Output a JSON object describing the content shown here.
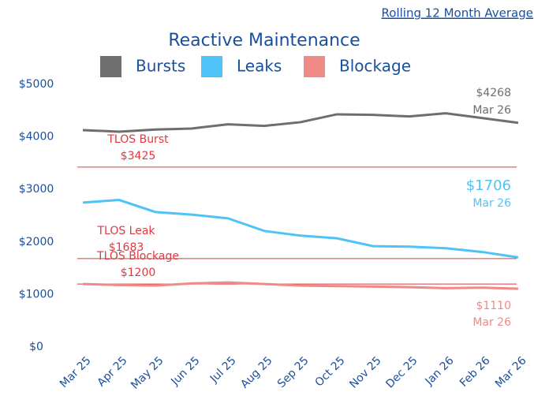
{
  "link": "Rolling 12 Month Average",
  "chart_data": {
    "type": "line",
    "title": "Reactive Maintenance",
    "categories": [
      "Mar 25",
      "Apr 25",
      "May 25",
      "Jun 25",
      "Jul 25",
      "Aug 25",
      "Sep 25",
      "Oct 25",
      "Nov 25",
      "Dec 25",
      "Jan 26",
      "Feb 26",
      "Mar 26"
    ],
    "series": [
      {
        "name": "Bursts",
        "color": "#6e6e6e",
        "values": [
          4130,
          4100,
          4140,
          4160,
          4240,
          4210,
          4280,
          4430,
          4420,
          4390,
          4450,
          4360,
          4268
        ],
        "value_labels": [
          null,
          null,
          null,
          null,
          null,
          null,
          null,
          null,
          null,
          null,
          null,
          null,
          "$4268"
        ]
      },
      {
        "name": "Leaks",
        "color": "#4fc3f7",
        "values": [
          2750,
          2800,
          2570,
          2520,
          2450,
          2210,
          2120,
          2070,
          1920,
          1910,
          1880,
          1810,
          1706
        ],
        "value_labels": [
          null,
          null,
          null,
          null,
          null,
          null,
          null,
          null,
          null,
          null,
          null,
          null,
          "$1706"
        ]
      },
      {
        "name": "Blockage",
        "color": "#f08a86",
        "values": [
          1200,
          1180,
          1170,
          1210,
          1230,
          1200,
          1170,
          1160,
          1150,
          1140,
          1120,
          1130,
          1110
        ],
        "value_labels": [
          null,
          null,
          null,
          null,
          null,
          null,
          null,
          null,
          null,
          null,
          null,
          null,
          "$1110"
        ]
      }
    ],
    "thresholds": [
      {
        "name": "TLOS Burst",
        "value": 3425,
        "value_label": "$3425"
      },
      {
        "name": "TLOS Leak",
        "value": 1683,
        "value_label": "$1683"
      },
      {
        "name": "TLOS Blockage",
        "value": 1200,
        "value_label": "$1200"
      }
    ],
    "threshold_color": "#e0393e",
    "ylim": [
      0,
      5000
    ],
    "yticks": [
      {
        "value": 0,
        "label": "$0"
      },
      {
        "value": 1000,
        "label": "$1000"
      },
      {
        "value": 2000,
        "label": "$2000"
      },
      {
        "value": 3000,
        "label": "$3000"
      },
      {
        "value": 4000,
        "label": "$4000"
      },
      {
        "value": 5000,
        "label": "$5000"
      }
    ]
  }
}
